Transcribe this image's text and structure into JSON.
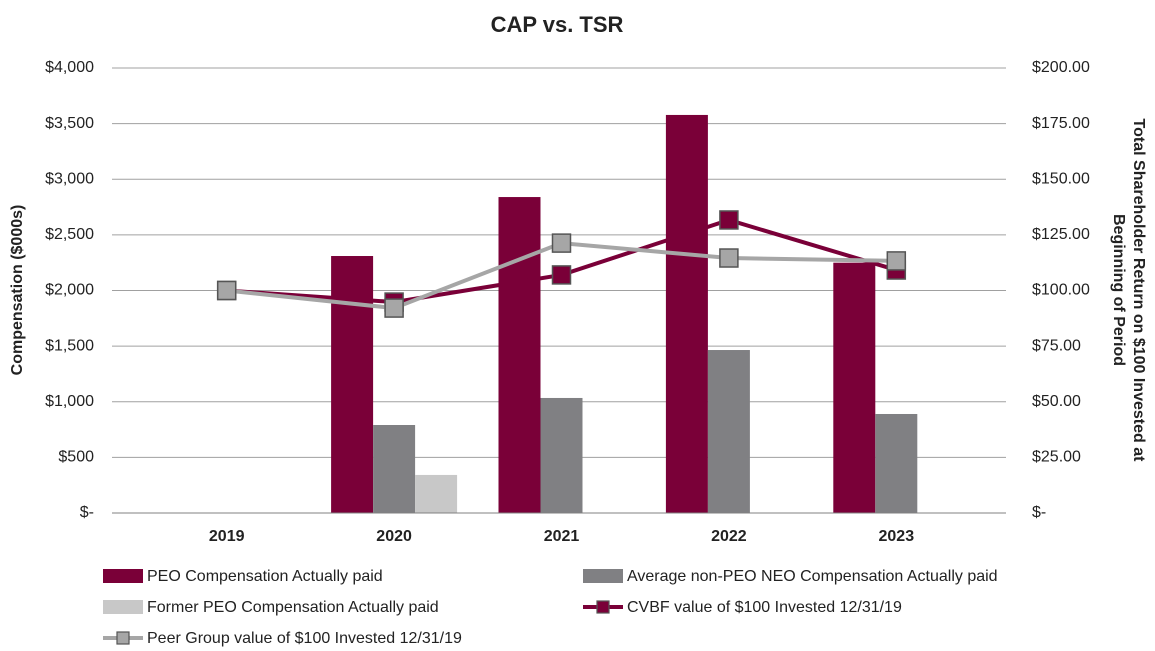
{
  "chart_data": {
    "type": "combo",
    "title": "CAP vs. TSR",
    "ylabel": "Compensation ($000s)",
    "y2label": [
      "Total Shareholder Return on $100 Invested at",
      "Beginning of Period"
    ],
    "categories": [
      "2019",
      "2020",
      "2021",
      "2022",
      "2023"
    ],
    "ylim": [
      0,
      4000
    ],
    "yticks": [
      {
        "value": 0,
        "label": "$-"
      },
      {
        "value": 500,
        "label": "$500"
      },
      {
        "value": 1000,
        "label": "$1,000"
      },
      {
        "value": 1500,
        "label": "$1,500"
      },
      {
        "value": 2000,
        "label": "$2,000"
      },
      {
        "value": 2500,
        "label": "$2,500"
      },
      {
        "value": 3000,
        "label": "$3,000"
      },
      {
        "value": 3500,
        "label": "$3,500"
      },
      {
        "value": 4000,
        "label": "$4,000"
      }
    ],
    "y2lim": [
      0,
      200
    ],
    "y2ticks": [
      {
        "value": 0,
        "label": "$-"
      },
      {
        "value": 25,
        "label": "$25.00"
      },
      {
        "value": 50,
        "label": "$50.00"
      },
      {
        "value": 75,
        "label": "$75.00"
      },
      {
        "value": 100,
        "label": "$100.00"
      },
      {
        "value": 125,
        "label": "$125.00"
      },
      {
        "value": 150,
        "label": "$150.00"
      },
      {
        "value": 175,
        "label": "$175.00"
      },
      {
        "value": 200,
        "label": "$200.00"
      }
    ],
    "grid": true,
    "legend": "bottom",
    "series": [
      {
        "name": "PEO Compensation Actually paid",
        "type": "bar",
        "color": "#7a0038",
        "values": [
          null,
          2310,
          2840,
          3578,
          2250
        ]
      },
      {
        "name": "Average non-PEO NEO Compensation Actually paid",
        "type": "bar",
        "color": "#808083",
        "values": [
          null,
          791,
          1034,
          1465,
          890
        ]
      },
      {
        "name": "Former PEO Compensation Actually paid",
        "type": "bar",
        "color": "#c8c8c8",
        "values": [
          null,
          342,
          null,
          null,
          null
        ]
      },
      {
        "name": "CVBF value of $100 Invested 12/31/19",
        "type": "line",
        "axis": "y2",
        "color": "#7a0038",
        "values": [
          100,
          94.8,
          107,
          131.7,
          109.2
        ]
      },
      {
        "name": "Peer Group value of $100 Invested 12/31/19",
        "type": "line",
        "axis": "y2",
        "color": "#a6a6a6",
        "values": [
          100,
          92.1,
          121.3,
          114.6,
          113.3
        ]
      }
    ]
  }
}
